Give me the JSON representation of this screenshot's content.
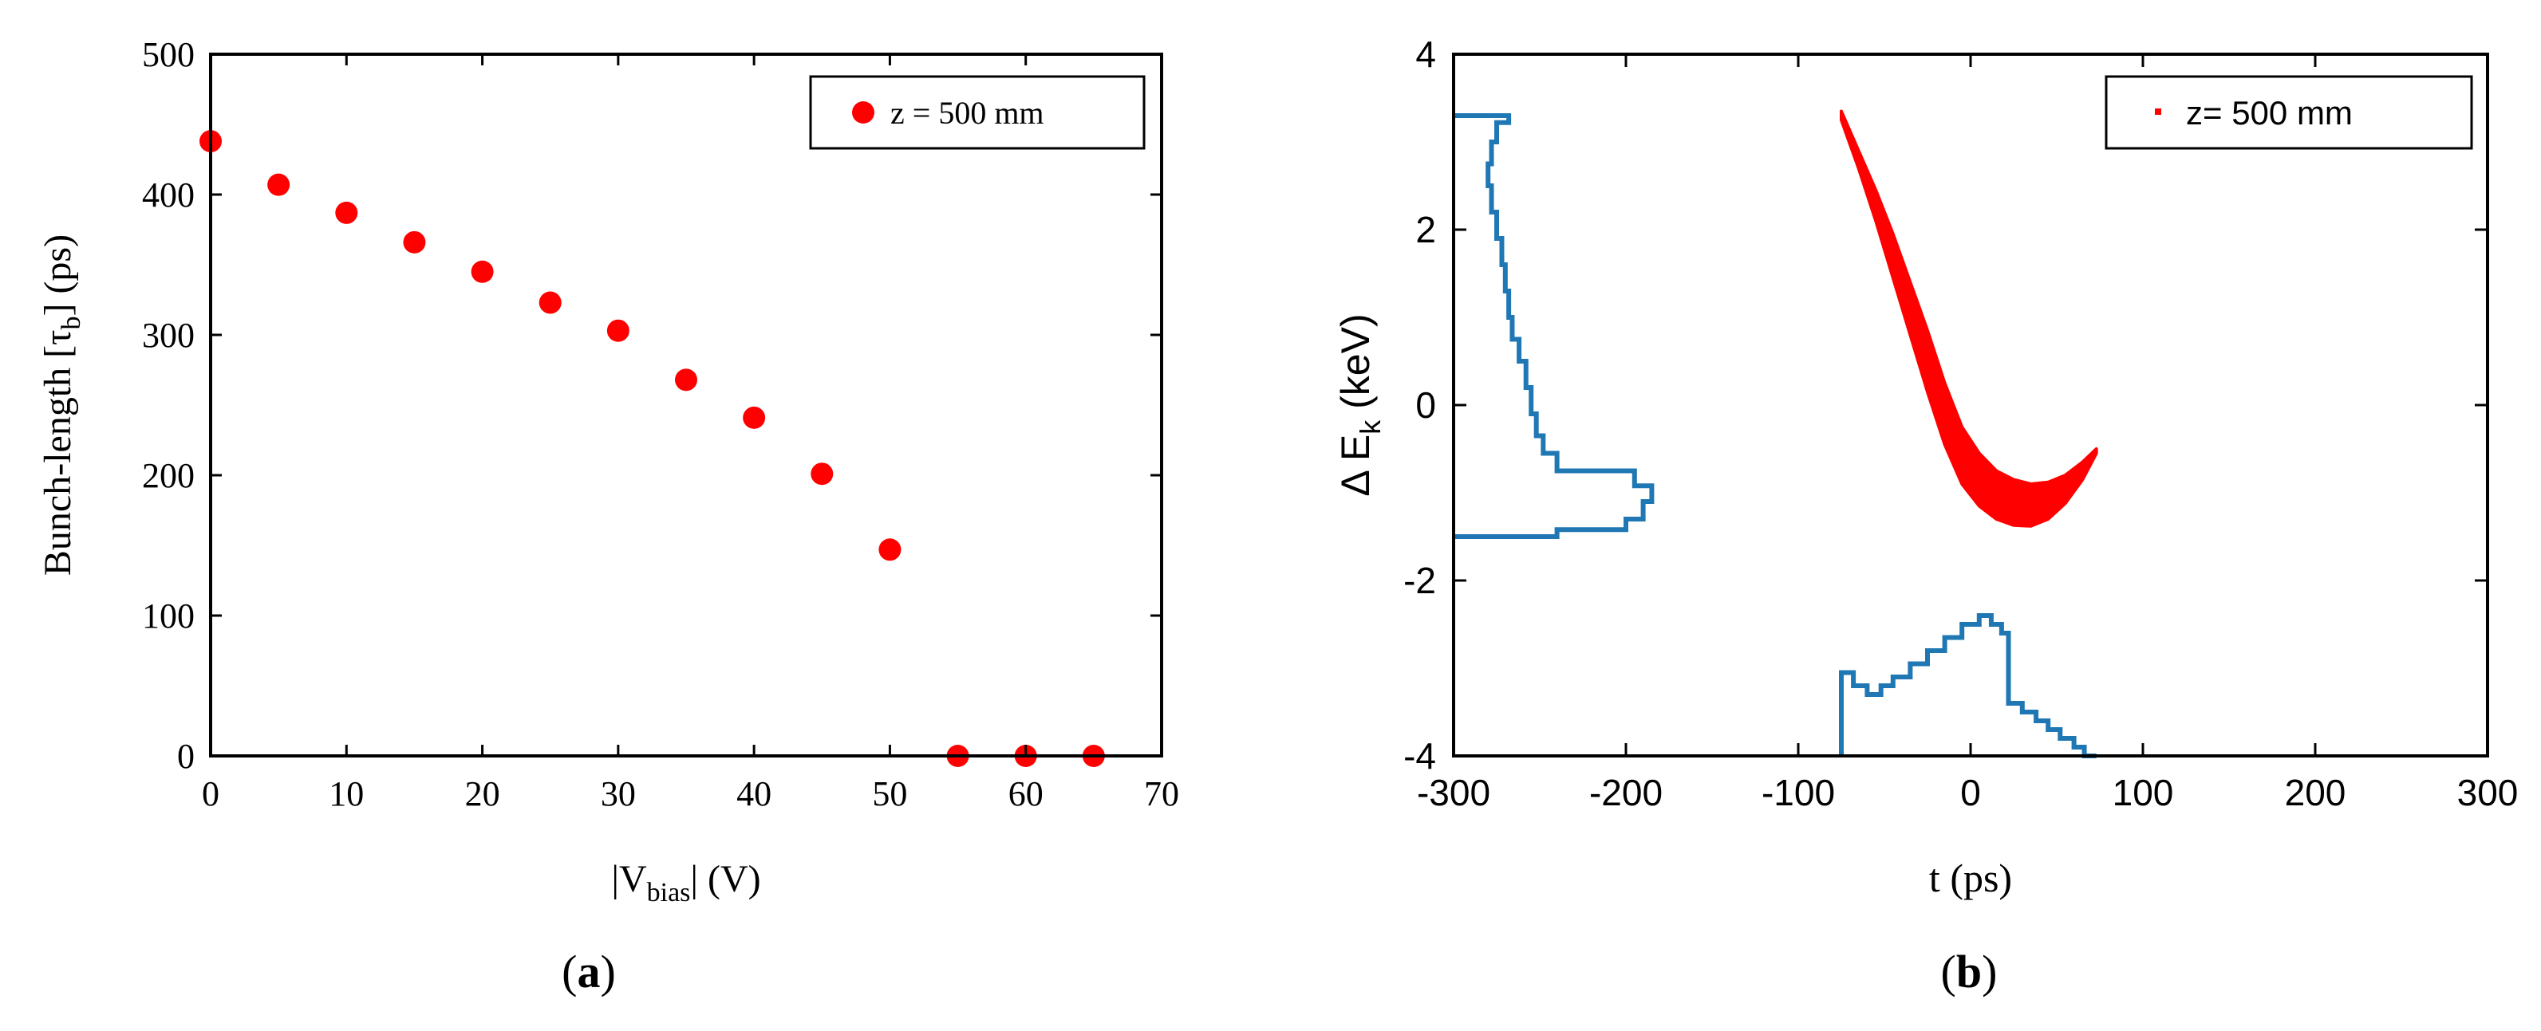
{
  "colors": {
    "marker": "#ff0000",
    "histogram": "#1f77b4",
    "axis": "#000000"
  },
  "chart_data": [
    {
      "panel": "(a)",
      "panel_prefix": "(",
      "panel_letter": "a",
      "panel_suffix": ")",
      "type": "scatter",
      "ylabel_main": "Bunch-length [τ",
      "ylabel_sub": "b",
      "ylabel_tail": "] (ps)",
      "xlabel_main": "|V",
      "xlabel_sub": "bias",
      "xlabel_tail": "| (V)",
      "xlim": [
        0,
        70
      ],
      "ylim": [
        0,
        500
      ],
      "xticks": [
        0,
        10,
        20,
        30,
        40,
        50,
        60,
        70
      ],
      "yticks": [
        0,
        100,
        200,
        300,
        400,
        500
      ],
      "legend": "z = 500 mm",
      "legend_position": "top-right",
      "series": [
        {
          "name": "z = 500 mm",
          "x": [
            0,
            5,
            10,
            15,
            20,
            25,
            30,
            35,
            40,
            45,
            50,
            55,
            60,
            65
          ],
          "y": [
            438,
            407,
            387,
            366,
            345,
            323,
            303,
            268,
            241,
            201,
            147,
            0,
            0,
            0
          ]
        }
      ]
    },
    {
      "panel": "(b)",
      "panel_prefix": "(",
      "panel_letter": "b",
      "panel_suffix": ")",
      "type": "scatter",
      "ylabel_main": "Δ E",
      "ylabel_sub": "k",
      "ylabel_tail": " (keV)",
      "xlabel": "t (ps)",
      "xlim": [
        -300,
        300
      ],
      "ylim": [
        -4,
        4
      ],
      "xticks": [
        -300,
        -200,
        -100,
        0,
        100,
        200,
        300
      ],
      "yticks": [
        -4,
        -2,
        0,
        2,
        4
      ],
      "legend": "z= 500 mm",
      "legend_position": "top-right",
      "series": [
        {
          "name": "z= 500 mm",
          "description": "energy-time phase space band",
          "band_upper": [
            [
              -75,
              3.35
            ],
            [
              -65,
              2.9
            ],
            [
              -55,
              2.45
            ],
            [
              -45,
              1.95
            ],
            [
              -35,
              1.4
            ],
            [
              -25,
              0.85
            ],
            [
              -15,
              0.25
            ],
            [
              -5,
              -0.25
            ],
            [
              5,
              -0.55
            ],
            [
              15,
              -0.75
            ],
            [
              25,
              -0.85
            ],
            [
              35,
              -0.9
            ],
            [
              45,
              -0.88
            ],
            [
              55,
              -0.8
            ],
            [
              65,
              -0.65
            ],
            [
              73,
              -0.5
            ]
          ],
          "band_lower": [
            [
              -75,
              3.25
            ],
            [
              -65,
              2.7
            ],
            [
              -55,
              2.1
            ],
            [
              -45,
              1.45
            ],
            [
              -35,
              0.8
            ],
            [
              -25,
              0.15
            ],
            [
              -15,
              -0.45
            ],
            [
              -5,
              -0.9
            ],
            [
              5,
              -1.15
            ],
            [
              15,
              -1.3
            ],
            [
              25,
              -1.37
            ],
            [
              35,
              -1.38
            ],
            [
              45,
              -1.3
            ],
            [
              55,
              -1.12
            ],
            [
              65,
              -0.85
            ],
            [
              73,
              -0.55
            ]
          ]
        }
      ],
      "energy_histogram": {
        "name": "ΔE histogram",
        "points": [
          [
            -300,
            3.3
          ],
          [
            -268,
            3.3
          ],
          [
            -268,
            3.22
          ],
          [
            -275,
            3.22
          ],
          [
            -275,
            3.0
          ],
          [
            -278,
            3.0
          ],
          [
            -278,
            2.75
          ],
          [
            -280,
            2.75
          ],
          [
            -280,
            2.5
          ],
          [
            -278,
            2.5
          ],
          [
            -278,
            2.2
          ],
          [
            -275,
            2.2
          ],
          [
            -275,
            1.9
          ],
          [
            -272,
            1.9
          ],
          [
            -272,
            1.6
          ],
          [
            -270,
            1.6
          ],
          [
            -270,
            1.3
          ],
          [
            -268,
            1.3
          ],
          [
            -268,
            1.0
          ],
          [
            -266,
            1.0
          ],
          [
            -266,
            0.75
          ],
          [
            -262,
            0.75
          ],
          [
            -262,
            0.5
          ],
          [
            -258,
            0.5
          ],
          [
            -258,
            0.2
          ],
          [
            -255,
            0.2
          ],
          [
            -255,
            -0.1
          ],
          [
            -252,
            -0.1
          ],
          [
            -252,
            -0.35
          ],
          [
            -248,
            -0.35
          ],
          [
            -248,
            -0.55
          ],
          [
            -240,
            -0.55
          ],
          [
            -240,
            -0.75
          ],
          [
            -195,
            -0.75
          ],
          [
            -195,
            -0.92
          ],
          [
            -185,
            -0.92
          ],
          [
            -185,
            -1.1
          ],
          [
            -190,
            -1.1
          ],
          [
            -190,
            -1.3
          ],
          [
            -200,
            -1.3
          ],
          [
            -200,
            -1.42
          ],
          [
            -240,
            -1.42
          ],
          [
            -240,
            -1.5
          ],
          [
            -300,
            -1.5
          ]
        ]
      },
      "time_histogram": {
        "name": "t histogram",
        "points": [
          [
            -75,
            -4.0
          ],
          [
            -75,
            -3.05
          ],
          [
            -68,
            -3.05
          ],
          [
            -68,
            -3.2
          ],
          [
            -60,
            -3.2
          ],
          [
            -60,
            -3.3
          ],
          [
            -52,
            -3.3
          ],
          [
            -52,
            -3.2
          ],
          [
            -45,
            -3.2
          ],
          [
            -45,
            -3.1
          ],
          [
            -35,
            -3.1
          ],
          [
            -35,
            -2.95
          ],
          [
            -25,
            -2.95
          ],
          [
            -25,
            -2.8
          ],
          [
            -15,
            -2.8
          ],
          [
            -15,
            -2.65
          ],
          [
            -5,
            -2.65
          ],
          [
            -5,
            -2.5
          ],
          [
            5,
            -2.5
          ],
          [
            5,
            -2.4
          ],
          [
            12,
            -2.4
          ],
          [
            12,
            -2.5
          ],
          [
            18,
            -2.5
          ],
          [
            18,
            -2.6
          ],
          [
            22,
            -2.6
          ],
          [
            22,
            -3.4
          ],
          [
            30,
            -3.4
          ],
          [
            30,
            -3.5
          ],
          [
            38,
            -3.5
          ],
          [
            38,
            -3.6
          ],
          [
            45,
            -3.6
          ],
          [
            45,
            -3.7
          ],
          [
            52,
            -3.7
          ],
          [
            52,
            -3.8
          ],
          [
            60,
            -3.8
          ],
          [
            60,
            -3.9
          ],
          [
            66,
            -3.9
          ],
          [
            66,
            -4.0
          ],
          [
            73,
            -4.0
          ]
        ]
      }
    }
  ]
}
